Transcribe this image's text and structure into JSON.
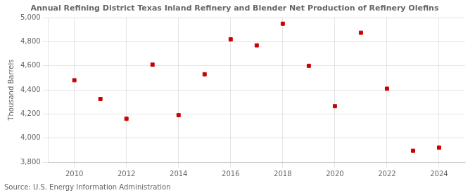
{
  "chart_data": {
    "type": "scatter",
    "title": "Annual Refining District Texas Inland Refinery and Blender Net Production of Refinery Olefins",
    "ylabel": "Thousand Barrels",
    "annotations": [
      "Source: U.S. Energy Information Administration"
    ],
    "x": [
      2010,
      2011,
      2012,
      2013,
      2014,
      2015,
      2016,
      2017,
      2018,
      2019,
      2020,
      2021,
      2022,
      2023,
      2024
    ],
    "values": [
      4480,
      4325,
      4160,
      4610,
      4190,
      4530,
      4820,
      4770,
      4950,
      4600,
      4265,
      4875,
      4410,
      3895,
      3920
    ],
    "color": "#cc0000",
    "marker": "square",
    "xlim": [
      2009,
      2025
    ],
    "xticks": [
      2010,
      2012,
      2014,
      2016,
      2018,
      2020,
      2022,
      2024
    ],
    "ylim": [
      3800,
      5000
    ],
    "yticks": [
      {
        "value": 3800,
        "label": "3,800"
      },
      {
        "value": 4000,
        "label": "4,000"
      },
      {
        "value": 4200,
        "label": "4,200"
      },
      {
        "value": 4400,
        "label": "4,400"
      },
      {
        "value": 4600,
        "label": "4,600"
      },
      {
        "value": 4800,
        "label": "4,800"
      },
      {
        "value": 5000,
        "label": "5,000"
      }
    ],
    "grid": true
  }
}
